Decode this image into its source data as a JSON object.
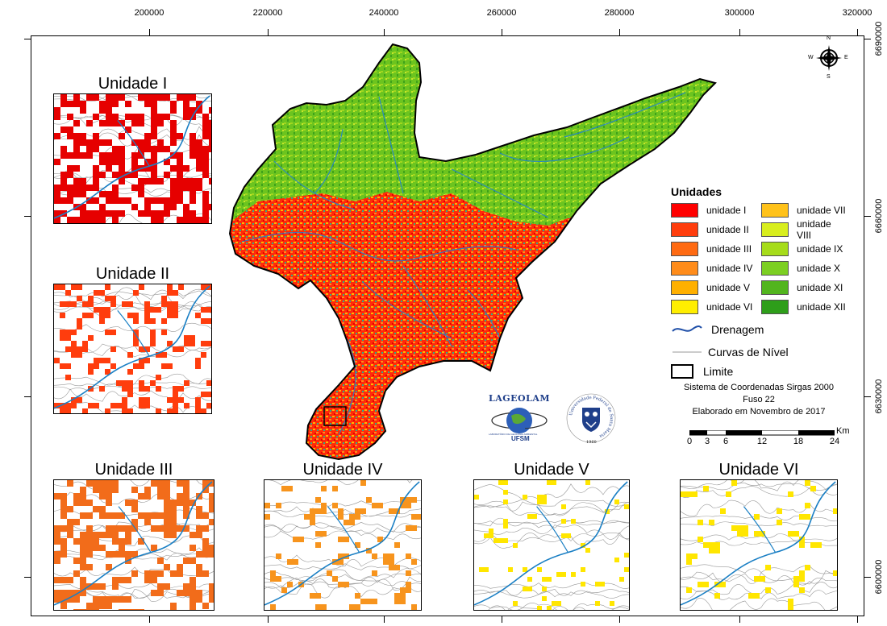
{
  "map": {
    "ticks_top": [
      "200000",
      "220000",
      "240000",
      "260000",
      "280000",
      "300000",
      "320000"
    ],
    "ticks_right": [
      "6690000",
      "6660000",
      "6630000",
      "6600000"
    ]
  },
  "insets": [
    {
      "title": "Unidade I",
      "color": "#e60000"
    },
    {
      "title": "Unidade II",
      "color": "#ff3d0d"
    },
    {
      "title": "Unidade III",
      "color": "#f26c1a"
    },
    {
      "title": "Unidade IV",
      "color": "#f7941d"
    },
    {
      "title": "Unidade V",
      "color": "#ffe600"
    },
    {
      "title": "Unidade VI",
      "color": "#ffe600"
    }
  ],
  "legend": {
    "title": "Unidades",
    "items": [
      {
        "label": "unidade I",
        "color": "#ff0000"
      },
      {
        "label": "unidade II",
        "color": "#ff3d0d"
      },
      {
        "label": "unidade III",
        "color": "#ff6a12"
      },
      {
        "label": "unidade IV",
        "color": "#ff8c1a"
      },
      {
        "label": "unidade V",
        "color": "#ffb000"
      },
      {
        "label": "unidade VI",
        "color": "#ffee00"
      },
      {
        "label": "unidade VII",
        "color": "#ffc21a"
      },
      {
        "label": "unidade VIII",
        "color": "#d8ee1e"
      },
      {
        "label": "unidade IX",
        "color": "#a6dc1a"
      },
      {
        "label": "unidade X",
        "color": "#7ccf22"
      },
      {
        "label": "unidade XI",
        "color": "#52b51e"
      },
      {
        "label": "unidade XII",
        "color": "#2e9e1a"
      }
    ],
    "drainage_label": "Drenagem",
    "contour_label": "Curvas de Nível",
    "limit_label": "Limite"
  },
  "info": {
    "line1": "Sistema de Coordenadas Sirgas 2000",
    "line2": "Fuso 22",
    "line3": "Elaborado em Novembro de 2017"
  },
  "scale": {
    "unit": "Km",
    "labels": [
      "0",
      "3",
      "6",
      "12",
      "18",
      "24"
    ]
  },
  "compass": {
    "n": "N",
    "s": "S",
    "e": "E",
    "w": "W"
  },
  "logos": {
    "lageolam": "LAGEOLAM",
    "lageolam_sub": "LABORATÓRIO DE GEOLOGIA AMBIENTAL",
    "lageolam_ufsm": "UFSM",
    "ufsm_ring": "Universidade Federal de Santa Maria",
    "ufsm_year": "1960"
  }
}
